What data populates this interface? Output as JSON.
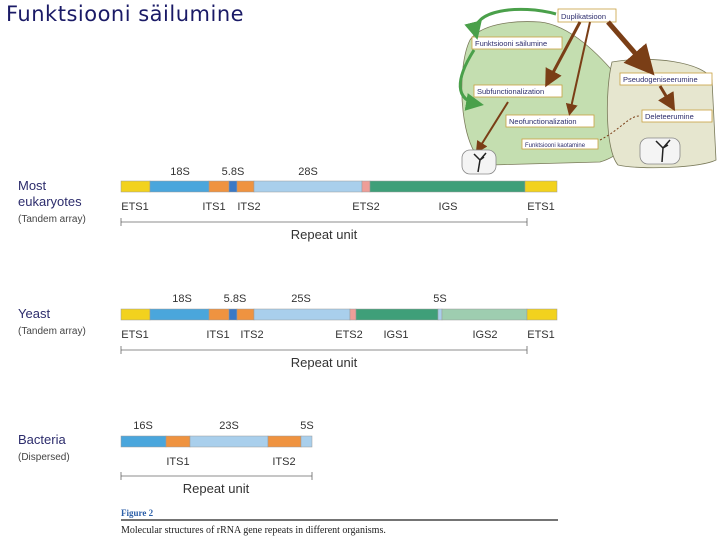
{
  "slide": {
    "title": "Funktsiooni säilumine"
  },
  "flowchart": {
    "nodes": {
      "duplication": "Duplikatsioon",
      "preservation": "Funktsiooni säilumine",
      "subfunctionalization": "Subfunctionalization",
      "neofunctionalization": "Neofunctionalization",
      "loss": "Funktsiooni kaotamine",
      "pseudogenization": "Pseudogeniseerumine",
      "deletion": "Deleteerumine"
    },
    "badges": {
      "left": "",
      "right": ""
    }
  },
  "diagram": {
    "rows": [
      {
        "id": "eukaryotes",
        "name_lines": [
          "Most",
          "eukaryotes"
        ],
        "subtitle": "(Tandem array)",
        "top_labels": [
          "18S",
          "5.8S",
          "28S"
        ],
        "bottom_labels": [
          "ETS1",
          "ITS1",
          "ITS2",
          "ETS2",
          "IGS",
          "ETS1"
        ],
        "repeat_label": "Repeat unit"
      },
      {
        "id": "yeast",
        "name_lines": [
          "Yeast"
        ],
        "subtitle": "(Tandem array)",
        "top_labels": [
          "18S",
          "5.8S",
          "25S",
          "5S"
        ],
        "bottom_labels": [
          "ETS1",
          "ITS1",
          "ITS2",
          "ETS2",
          "IGS1",
          "IGS2",
          "ETS1"
        ],
        "repeat_label": "Repeat unit"
      },
      {
        "id": "bacteria",
        "name_lines": [
          "Bacteria"
        ],
        "subtitle": "(Dispersed)",
        "top_labels": [
          "16S",
          "23S",
          "5S"
        ],
        "bottom_labels": [
          "ITS1",
          "ITS2"
        ],
        "repeat_label": "Repeat unit"
      }
    ],
    "figure_label": "Figure 2",
    "caption": "Molecular structures of rRNA gene repeats in different organisms."
  },
  "colors": {
    "ets_yellow": "#f2d21e",
    "rrna_blue": "#4aa6dc",
    "its_orange": "#ef9340",
    "rrna_light_blue": "#a9cfec",
    "small_blue": "#3a79c6",
    "ets2_pink": "#ee9e98",
    "igs_green": "#3f9f79",
    "igs_light_green": "#9ecdb0",
    "flow_green": "#c4deb0",
    "flow_grey": "#e6e6cf",
    "arrow_brown": "#7a3e16",
    "arrow_green": "#4aa04a",
    "label_navy": "#2c2c6c",
    "title_navy": "#1a1a66"
  }
}
